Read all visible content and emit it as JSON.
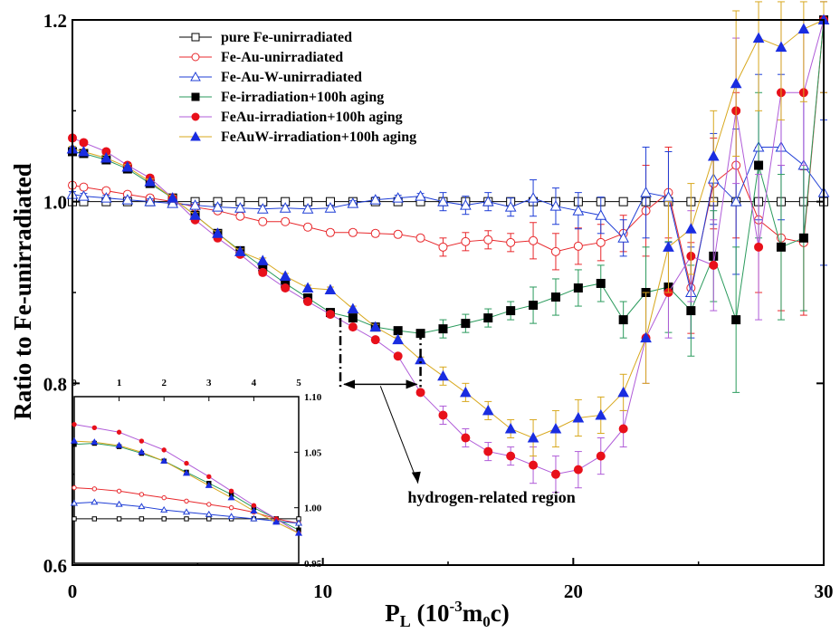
{
  "chart_data": [
    {
      "type": "line",
      "title": "",
      "xlabel": "P",
      "xlabel_sub": "L",
      "xlabel_unit": " (10",
      "xlabel_exp": "-3",
      "xlabel_m": "m",
      "xlabel_m_sub": "0",
      "xlabel_c": "c)",
      "ylabel": "Ratio to Fe-unirradiated",
      "xlim": [
        0,
        30
      ],
      "ylim": [
        0.6,
        1.2
      ],
      "x_ticks": [
        "0",
        "10",
        "20",
        "30"
      ],
      "y_ticks": [
        "0.6",
        "0.8",
        "1.0",
        "1.2"
      ],
      "legend_position": "top-center",
      "x": [
        0,
        0.45,
        1.35,
        2.2,
        3.1,
        4.0,
        4.9,
        5.8,
        6.7,
        7.6,
        8.5,
        9.4,
        10.3,
        11.2,
        12.1,
        13.0,
        13.9,
        14.8,
        15.7,
        16.6,
        17.5,
        18.4,
        19.3,
        20.2,
        21.1,
        22.0,
        22.9,
        23.8,
        24.7,
        25.6,
        26.5,
        27.4,
        28.3,
        29.2,
        30
      ],
      "series": [
        {
          "name": "pure Fe-unirradiated",
          "color": "#000000",
          "marker": "square-open",
          "values": [
            1.0,
            1.0,
            1.0,
            1.0,
            1.0,
            1.0,
            1.0,
            1.0,
            1.0,
            1.0,
            1.0,
            1.0,
            1.0,
            1.0,
            1.0,
            1.0,
            1.0,
            1.0,
            1.0,
            1.0,
            1.0,
            1.0,
            1.0,
            1.0,
            1.0,
            1.0,
            1.0,
            1.0,
            1.0,
            1.0,
            1.0,
            1.0,
            1.0,
            1.0,
            1.0
          ]
        },
        {
          "name": "Fe-Au-unirradiated",
          "color": "#e8282c",
          "marker": "circle-open",
          "values": [
            1.018,
            1.016,
            1.012,
            1.008,
            1.004,
            1.0,
            0.994,
            0.99,
            0.984,
            0.978,
            0.978,
            0.972,
            0.966,
            0.966,
            0.965,
            0.964,
            0.96,
            0.95,
            0.956,
            0.958,
            0.955,
            0.957,
            0.945,
            0.951,
            0.955,
            0.965,
            0.99,
            1.01,
            0.905,
            1.02,
            1.04,
            0.98,
            0.96,
            0.955,
            1.2
          ]
        },
        {
          "name": "Fe-Au-W-unirradiated",
          "color": "#1f3ed6",
          "marker": "triangle-open",
          "values": [
            1.008,
            1.006,
            1.004,
            1.002,
            1.0,
            0.998,
            0.996,
            0.994,
            0.993,
            0.992,
            0.993,
            0.992,
            0.993,
            0.998,
            1.002,
            1.004,
            1.006,
            1.0,
            0.996,
            1.0,
            0.994,
            1.004,
            0.995,
            0.99,
            0.985,
            0.96,
            1.01,
            1.005,
            0.9,
            1.025,
            1.0,
            1.06,
            1.06,
            1.04,
            1.01
          ]
        },
        {
          "name": "Fe-irradiation+100h aging",
          "color": "#2a9a5c",
          "marker": "square-filled",
          "values": [
            1.055,
            1.053,
            1.046,
            1.036,
            1.02,
            1.004,
            0.985,
            0.965,
            0.946,
            0.928,
            0.91,
            0.894,
            0.878,
            0.872,
            0.862,
            0.858,
            0.855,
            0.86,
            0.866,
            0.872,
            0.88,
            0.886,
            0.895,
            0.905,
            0.91,
            0.87,
            0.9,
            0.906,
            0.88,
            0.94,
            0.87,
            1.04,
            0.95,
            0.96,
            1.2
          ]
        },
        {
          "name": "FeAu-irradiation+100h aging",
          "color": "#b05cd8",
          "marker": "circle-filled",
          "values": [
            1.07,
            1.065,
            1.055,
            1.04,
            1.026,
            1.004,
            0.98,
            0.96,
            0.942,
            0.922,
            0.905,
            0.89,
            0.876,
            0.862,
            0.848,
            0.83,
            0.79,
            0.765,
            0.74,
            0.725,
            0.72,
            0.71,
            0.7,
            0.705,
            0.72,
            0.75,
            0.85,
            0.9,
            0.94,
            0.93,
            1.1,
            0.95,
            1.12,
            1.12,
            1.2
          ]
        },
        {
          "name": "FeAuW-irradiation+100h aging",
          "color": "#d8a81e",
          "marker": "triangle-filled",
          "values": [
            1.058,
            1.055,
            1.048,
            1.038,
            1.022,
            1.004,
            0.985,
            0.965,
            0.945,
            0.935,
            0.918,
            0.905,
            0.903,
            0.882,
            0.862,
            0.848,
            0.826,
            0.808,
            0.79,
            0.77,
            0.75,
            0.74,
            0.75,
            0.762,
            0.765,
            0.79,
            0.85,
            0.95,
            0.97,
            1.05,
            1.13,
            1.18,
            1.17,
            1.19,
            1.2
          ]
        }
      ],
      "annotations": [
        {
          "text": "hydrogen-related region",
          "x": 17.0,
          "y": 0.675
        }
      ]
    },
    {
      "type": "line",
      "title": "",
      "xlim": [
        0,
        5
      ],
      "ylim": [
        0.95,
        1.1
      ],
      "x_ticks": [
        "0",
        "1",
        "2",
        "3",
        "4",
        "5"
      ],
      "y_ticks": [
        "0.95",
        "1.00",
        "1.05",
        "1.10"
      ],
      "x": [
        0,
        0.45,
        1.0,
        1.5,
        2.0,
        2.5,
        3.0,
        3.5,
        4.0,
        4.5,
        5.0
      ],
      "series": [
        {
          "name": "pure Fe-unirradiated",
          "color": "#000000",
          "values": [
            0.99,
            0.99,
            0.99,
            0.99,
            0.99,
            0.99,
            0.99,
            0.99,
            0.99,
            0.99,
            0.99
          ]
        },
        {
          "name": "Fe-Au-unirradiated",
          "color": "#e8282c",
          "values": [
            1.018,
            1.017,
            1.015,
            1.012,
            1.009,
            1.006,
            1.003,
            1.0,
            0.996,
            0.99,
            0.986
          ]
        },
        {
          "name": "Fe-Au-W-unirradiated",
          "color": "#1f3ed6",
          "values": [
            1.004,
            1.005,
            1.003,
            1.001,
            0.998,
            0.996,
            0.994,
            0.992,
            0.99,
            0.988,
            0.986
          ]
        },
        {
          "name": "Fe-irradiation+100h aging",
          "color": "#2a9a5c",
          "values": [
            1.057,
            1.058,
            1.055,
            1.049,
            1.042,
            1.032,
            1.022,
            1.012,
            1.0,
            0.99,
            0.98
          ]
        },
        {
          "name": "FeAu-irradiation+100h aging",
          "color": "#b05cd8",
          "values": [
            1.075,
            1.072,
            1.068,
            1.06,
            1.052,
            1.04,
            1.028,
            1.015,
            1.002,
            0.99,
            0.977
          ]
        },
        {
          "name": "FeAuW-irradiation+100h aging",
          "color": "#d8a81e",
          "values": [
            1.06,
            1.059,
            1.056,
            1.05,
            1.042,
            1.031,
            1.02,
            1.009,
            0.997,
            0.987,
            0.977
          ]
        }
      ]
    }
  ]
}
